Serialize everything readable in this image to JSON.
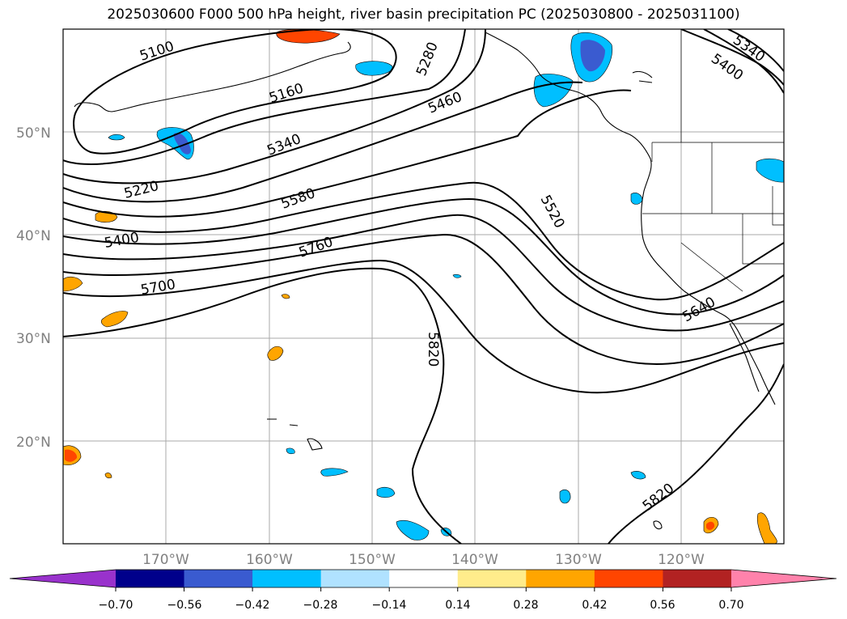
{
  "title": "2025030600 F000 500 hPa height, river basin precipitation PC (2025030800 - 2025031100)",
  "lat_labels": [
    "50°N",
    "40°N",
    "30°N",
    "20°N"
  ],
  "lon_labels": [
    "170°W",
    "160°W",
    "150°W",
    "140°W",
    "130°W",
    "120°W"
  ],
  "contour_labels": [
    "5100",
    "5160",
    "5280",
    "5460",
    "5340",
    "5220",
    "5400",
    "5580",
    "5760",
    "5700",
    "5520",
    "5640",
    "5820",
    "5820",
    "5340",
    "5400"
  ],
  "colorbar": {
    "ticks": [
      "−0.70",
      "−0.56",
      "−0.42",
      "−0.28",
      "−0.14",
      "0.14",
      "0.28",
      "0.42",
      "0.56",
      "0.70"
    ],
    "colors": [
      "#9932cc",
      "#00008b",
      "#3a5bd0",
      "#00bfff",
      "#b0e2ff",
      "#ffffff",
      "#ffec8b",
      "#ffa500",
      "#ff4500",
      "#b22222",
      "#ff82ab"
    ]
  }
}
